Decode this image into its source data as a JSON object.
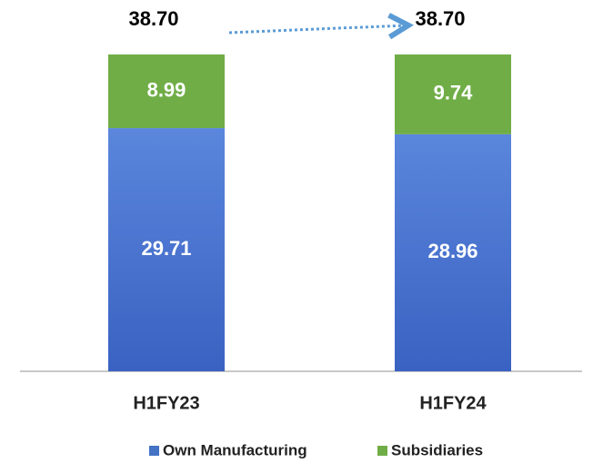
{
  "chart_data": {
    "type": "stacked-bar",
    "categories": [
      "H1FY23",
      "H1FY24"
    ],
    "series": [
      {
        "name": "Own Manufacturing",
        "color": "#4472c4",
        "values": [
          29.71,
          28.96
        ]
      },
      {
        "name": "Subsidiaries",
        "color": "#70ad47",
        "values": [
          8.99,
          9.74
        ]
      }
    ],
    "totals": [
      38.7,
      38.7
    ],
    "total_labels": [
      "38.70",
      "38.70"
    ]
  }
}
